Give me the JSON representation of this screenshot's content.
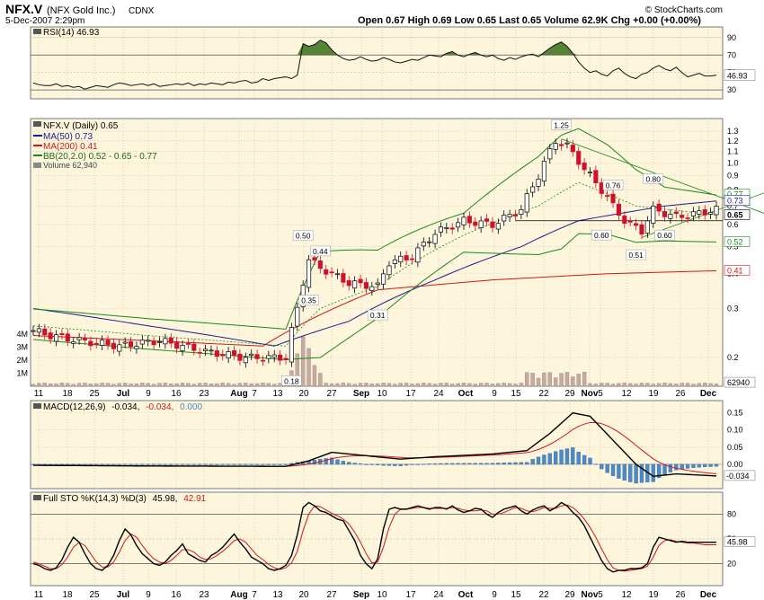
{
  "header": {
    "symbol": "NFX.V",
    "company": "(NFX Gold Inc.)",
    "exchange": "CDNX",
    "datetime": "5-Dec-2007 2:29pm",
    "quote": "Open 0.67  High 0.69  Low 0.65  Last 0.65  Volume 62.9K  Chg +0.00 (+0.00%)",
    "credit": "© StockCharts.com"
  },
  "colors": {
    "panel_bg": "#fdf5dc",
    "up_candle": "#ffffff",
    "down_candle": "#d0102a",
    "ma50": "#1c1c8c",
    "ma200": "#d01818",
    "bb": "#1a8a1a",
    "rsi_fill": "#3a6e1a",
    "macd_hist": "#4a8ac8"
  },
  "x_axis_labels": [
    "11",
    "18",
    "25",
    "Jul",
    "9",
    "16",
    "23",
    "Aug",
    "7",
    "13",
    "20",
    "27",
    "Sep",
    "10",
    "17",
    "24",
    "Oct",
    "9",
    "15",
    "22",
    "29",
    "Nov",
    "5",
    "12",
    "19",
    "26",
    "Dec"
  ],
  "rsi_panel": {
    "legend": "RSI(14) 46.93",
    "ticks": [
      "90",
      "70",
      "50",
      "30"
    ],
    "last_label": "46.93",
    "levels": [
      30,
      70
    ],
    "values": [
      38,
      36,
      35,
      35,
      37,
      34,
      35,
      33,
      34,
      31,
      33,
      35,
      34,
      33,
      36,
      38,
      37,
      35,
      36,
      37,
      35,
      37,
      34,
      35,
      36,
      37,
      36,
      38,
      35,
      37,
      36,
      38,
      37,
      36,
      39,
      38,
      40,
      41,
      38,
      39,
      43,
      41,
      43,
      44,
      45,
      43,
      47,
      83,
      80,
      82,
      87,
      84,
      76,
      70,
      66,
      64,
      65,
      68,
      65,
      63,
      64,
      67,
      65,
      62,
      61,
      63,
      65,
      64,
      67,
      70,
      69,
      68,
      72,
      74,
      70,
      68,
      71,
      73,
      70,
      68,
      70,
      66,
      64,
      67,
      65,
      68,
      70,
      71,
      68,
      73,
      78,
      82,
      85,
      80,
      72,
      62,
      55,
      50,
      52,
      48,
      46,
      52,
      55,
      49,
      45,
      43,
      48,
      50,
      55,
      58,
      54,
      52,
      56,
      50,
      45,
      47,
      49,
      46,
      46,
      47
    ]
  },
  "price_panel": {
    "legend_title": "NFX.V (Daily) 0.65",
    "legend_ma50": "MA(50) 0.73",
    "legend_ma200": "MA(200) 0.41",
    "legend_bb": "BB(20,2.0) 0.52 - 0.65 - 0.77",
    "legend_volume": "Volume 62,940",
    "ticks": [
      "1.3",
      "1.2",
      "1.1",
      "1.0",
      "0.9",
      "0.8",
      "0.7",
      "0.6",
      "0.5",
      "0.4",
      "0.3",
      "0.2"
    ],
    "right_labels": [
      "0.77",
      "0.73",
      "0.65",
      "0.52",
      "0.41"
    ],
    "volume_ticks": [
      "4M",
      "3M",
      "2M",
      "1M"
    ],
    "volume_last_label": "62940",
    "annotations": [
      {
        "text": "0.50",
        "i": 47,
        "v": 0.5
      },
      {
        "text": "0.44",
        "i": 50,
        "v": 0.44
      },
      {
        "text": "0.35",
        "i": 48,
        "v": 0.35
      },
      {
        "text": "0.31",
        "i": 60,
        "v": 0.31
      },
      {
        "text": "0.18",
        "i": 45,
        "v": 0.18
      },
      {
        "text": "1.25",
        "i": 92,
        "v": 1.25
      },
      {
        "text": "0.76",
        "i": 101,
        "v": 0.76
      },
      {
        "text": "0.80",
        "i": 108,
        "v": 0.8
      },
      {
        "text": "0.60",
        "i": 99,
        "v": 0.6
      },
      {
        "text": "0.51",
        "i": 105,
        "v": 0.51
      },
      {
        "text": "0.60",
        "i": 110,
        "v": 0.6
      }
    ]
  },
  "macd_panel": {
    "legend_prefix": "MACD(12,26,9)",
    "legend_v1": "-0.034,",
    "legend_v2": "-0.034,",
    "legend_v3": "0.000",
    "ticks": [
      "0.15",
      "0.10",
      "0.05",
      "0.00"
    ],
    "last_label": "-0.034"
  },
  "sto_panel": {
    "legend_prefix": "Full STO %K(14,3) %D(3)",
    "legend_k": "45.98,",
    "legend_d": "42.91",
    "ticks": [
      "80",
      "50",
      "20"
    ],
    "last_label": "45.98",
    "k": [
      20,
      18,
      14,
      12,
      15,
      25,
      40,
      52,
      46,
      32,
      20,
      14,
      12,
      18,
      30,
      48,
      62,
      55,
      42,
      32,
      26,
      20,
      18,
      22,
      30,
      36,
      44,
      32,
      28,
      24,
      22,
      30,
      34,
      40,
      48,
      56,
      46,
      38,
      28,
      24,
      20,
      14,
      12,
      14,
      18,
      30,
      55,
      88,
      94,
      90,
      84,
      82,
      78,
      74,
      72,
      60,
      48,
      30,
      20,
      14,
      26,
      62,
      86,
      88,
      86,
      86,
      88,
      90,
      88,
      86,
      88,
      88,
      86,
      90,
      85,
      82,
      84,
      87,
      86,
      80,
      76,
      82,
      86,
      88,
      90,
      84,
      80,
      85,
      88,
      90,
      84,
      88,
      94,
      90,
      82,
      76,
      66,
      52,
      38,
      24,
      14,
      10,
      12,
      12,
      14,
      14,
      15,
      20,
      40,
      52,
      50,
      48,
      46,
      47,
      46,
      46,
      46,
      46,
      46,
      46
    ],
    "d": [
      22,
      20,
      17,
      14,
      14,
      19,
      28,
      40,
      46,
      42,
      32,
      22,
      16,
      16,
      22,
      34,
      48,
      56,
      52,
      42,
      33,
      26,
      22,
      20,
      24,
      30,
      37,
      37,
      34,
      28,
      25,
      26,
      30,
      35,
      41,
      48,
      50,
      46,
      38,
      30,
      25,
      19,
      15,
      13,
      15,
      21,
      35,
      60,
      80,
      90,
      89,
      85,
      81,
      78,
      74,
      68,
      58,
      46,
      32,
      21,
      22,
      40,
      64,
      80,
      86,
      86,
      87,
      88,
      88,
      87,
      87,
      87,
      87,
      88,
      87,
      85,
      84,
      84,
      85,
      84,
      80,
      80,
      82,
      85,
      88,
      87,
      84,
      83,
      85,
      88,
      87,
      87,
      90,
      91,
      88,
      82,
      74,
      64,
      52,
      38,
      25,
      15,
      12,
      11,
      12,
      13,
      14,
      17,
      28,
      42,
      48,
      49,
      47,
      46,
      45,
      45,
      44,
      43,
      43,
      43
    ]
  }
}
